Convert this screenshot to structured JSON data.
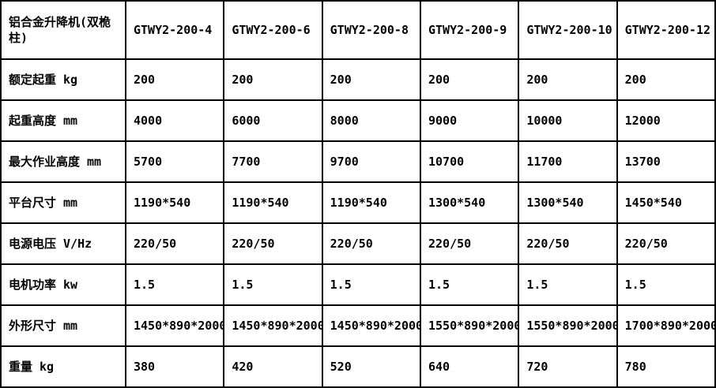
{
  "table": {
    "corner_label": "铝合金升降机(双桅柱)",
    "columns": [
      "GTWY2-200-4",
      "GTWY2-200-6",
      "GTWY2-200-8",
      "GTWY2-200-9",
      "GTWY2-200-10",
      "GTWY2-200-12"
    ],
    "rows": [
      {
        "label": "额定起重 kg",
        "values": [
          "200",
          "200",
          "200",
          "200",
          "200",
          "200"
        ]
      },
      {
        "label": "起重高度 mm",
        "values": [
          "4000",
          "6000",
          "8000",
          "9000",
          "10000",
          "12000"
        ]
      },
      {
        "label": "最大作业高度 mm",
        "values": [
          "5700",
          "7700",
          "9700",
          "10700",
          "11700",
          "13700"
        ]
      },
      {
        "label": "平台尺寸 mm",
        "values": [
          "1190*540",
          "1190*540",
          "1190*540",
          "1300*540",
          "1300*540",
          "1450*540"
        ]
      },
      {
        "label": "电源电压 V/Hz",
        "values": [
          "220/50",
          "220/50",
          "220/50",
          "220/50",
          "220/50",
          "220/50"
        ]
      },
      {
        "label": "电机功率 kw",
        "values": [
          "1.5",
          "1.5",
          "1.5",
          "1.5",
          "1.5",
          "1.5"
        ]
      },
      {
        "label": "外形尺寸 mm",
        "values": [
          "1450*890*2000",
          "1450*890*2000",
          "1450*890*2000",
          "1550*890*2000",
          "1550*890*2000",
          "1700*890*2000"
        ]
      },
      {
        "label": "重量 kg",
        "values": [
          "380",
          "420",
          "520",
          "640",
          "720",
          "780"
        ]
      }
    ]
  },
  "colors": {
    "border": "#000000",
    "background": "#ffffff",
    "text": "#000000"
  }
}
